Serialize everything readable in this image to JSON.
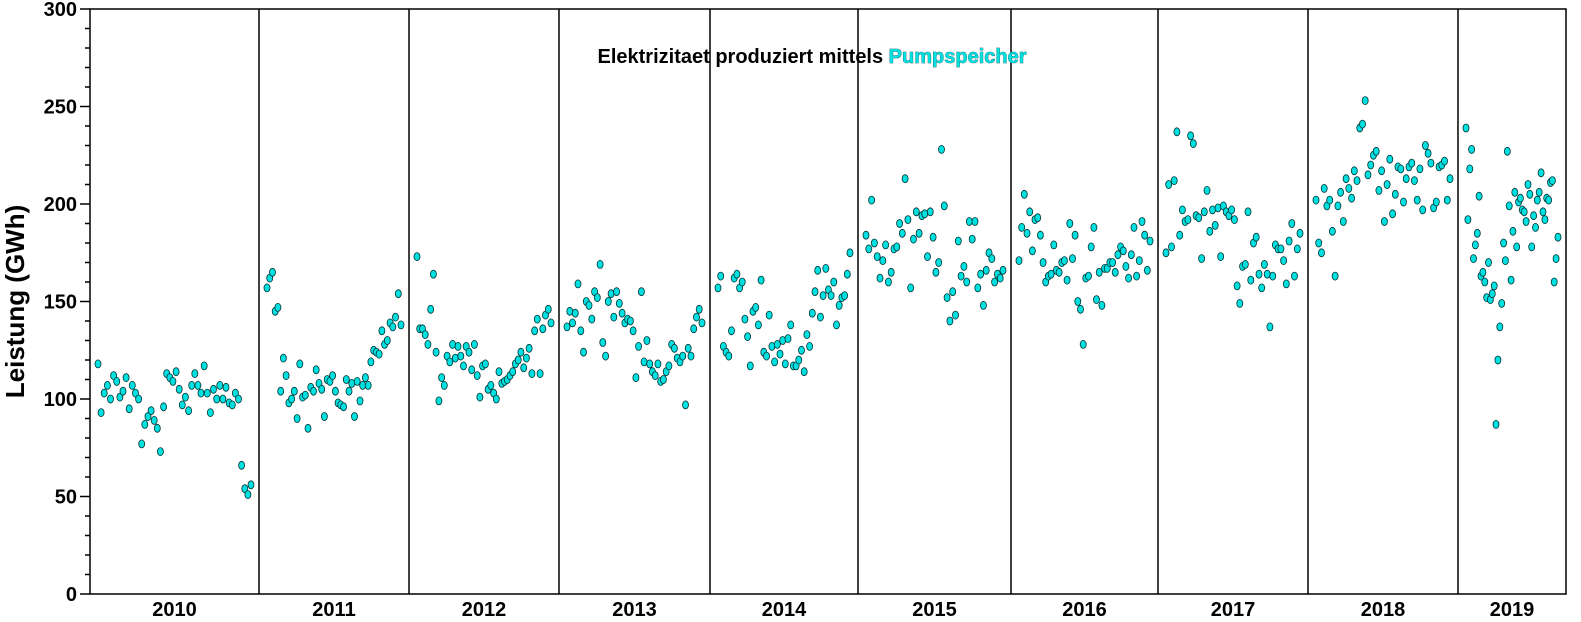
{
  "chart_data": {
    "type": "scatter",
    "title_prefix": "Elektrizitaet produziert mittels ",
    "title_highlight": "Pumpspeicher",
    "ylabel": "Leistung (GWh)",
    "xlabel": "",
    "ylim": [
      0,
      300
    ],
    "yticks": [
      0,
      50,
      100,
      150,
      200,
      250,
      300
    ],
    "categories": [
      "2010",
      "2011",
      "2012",
      "2013",
      "2014",
      "2015",
      "2016",
      "2017",
      "2018",
      "2019"
    ],
    "year_separators": true,
    "grid": false,
    "point_color": "#00e0e0",
    "series": [
      {
        "values": [
          [
            118,
            93,
            103,
            107,
            100,
            112,
            109,
            101,
            104,
            111,
            95,
            107,
            103,
            100,
            77,
            87,
            91,
            94,
            89,
            85,
            73,
            96,
            113,
            111,
            109,
            114,
            105,
            97,
            101,
            94,
            107,
            113,
            107,
            103,
            117,
            103,
            93,
            105,
            100,
            107,
            100,
            106,
            98,
            97,
            103,
            100,
            66,
            54,
            51,
            56
          ],
          [
            157,
            162,
            165,
            145,
            147,
            104,
            121,
            112,
            98,
            100,
            104,
            90,
            118,
            101,
            102,
            85,
            106,
            104,
            115,
            108,
            105,
            91,
            110,
            109,
            112,
            104,
            98,
            97,
            96,
            110,
            104,
            108,
            91,
            109,
            99,
            107,
            111,
            107,
            119,
            125,
            124,
            123,
            135,
            128,
            130,
            139,
            137,
            142,
            154,
            138
          ],
          [
            173,
            136,
            136,
            133,
            128,
            146,
            164,
            124,
            99,
            111,
            107,
            122,
            119,
            128,
            121,
            127,
            122,
            117,
            127,
            124,
            115,
            128,
            112,
            101,
            117,
            118,
            105,
            107,
            103,
            100,
            114,
            108,
            109,
            110,
            112,
            114,
            118,
            120,
            124,
            116,
            121,
            126,
            113,
            135,
            141,
            113,
            136,
            143,
            146,
            139
          ],
          [
            137,
            145,
            139,
            144,
            159,
            135,
            124,
            150,
            148,
            141,
            155,
            152,
            169,
            129,
            122,
            150,
            154,
            142,
            155,
            149,
            144,
            139,
            141,
            140,
            135,
            111,
            127,
            155,
            119,
            130,
            118,
            114,
            112,
            118,
            109,
            110,
            114,
            117,
            128,
            126,
            121,
            119,
            122,
            97,
            126,
            122,
            136,
            142,
            146,
            139
          ],
          [
            157,
            163,
            127,
            124,
            122,
            135,
            162,
            164,
            157,
            160,
            141,
            132,
            117,
            145,
            147,
            138,
            161,
            124,
            122,
            143,
            127,
            119,
            128,
            123,
            130,
            118,
            131,
            138,
            117,
            117,
            120,
            125,
            114,
            133,
            127,
            144,
            155,
            166,
            142,
            153,
            167,
            156,
            153,
            160,
            138,
            148,
            152,
            153,
            164,
            175
          ],
          [
            184,
            177,
            202,
            180,
            173,
            162,
            171,
            179,
            160,
            165,
            177,
            178,
            190,
            185,
            213,
            192,
            157,
            182,
            196,
            185,
            194,
            195,
            173,
            196,
            183,
            165,
            170,
            228,
            199,
            152,
            140,
            155,
            143,
            181,
            163,
            168,
            160,
            191,
            182,
            191,
            157,
            164,
            148,
            166,
            175,
            172,
            160,
            164,
            162,
            166
          ],
          [
            171,
            188,
            205,
            185,
            196,
            176,
            192,
            193,
            184,
            170,
            160,
            163,
            164,
            179,
            166,
            165,
            170,
            171,
            161,
            190,
            172,
            184,
            150,
            146,
            128,
            162,
            163,
            178,
            188,
            151,
            165,
            148,
            167,
            167,
            170,
            170,
            165,
            174,
            178,
            176,
            168,
            162,
            174,
            188,
            163,
            171,
            191,
            184,
            166,
            181
          ],
          [
            175,
            210,
            178,
            212,
            237,
            184,
            197,
            191,
            192,
            235,
            231,
            194,
            193,
            172,
            196,
            207,
            186,
            197,
            189,
            198,
            173,
            199,
            196,
            194,
            197,
            192,
            158,
            149,
            168,
            169,
            196,
            161,
            180,
            183,
            164,
            157,
            169,
            164,
            137,
            163,
            179,
            177,
            177,
            171,
            159,
            181,
            190,
            163,
            177,
            185
          ],
          [
            202,
            180,
            175,
            208,
            199,
            202,
            186,
            163,
            199,
            206,
            191,
            213,
            208,
            203,
            217,
            212,
            239,
            241,
            253,
            215,
            220,
            225,
            227,
            207,
            217,
            191,
            210,
            223,
            195,
            205,
            219,
            218,
            201,
            213,
            219,
            221,
            212,
            202,
            218,
            197,
            230,
            226,
            221,
            198,
            201,
            219,
            220,
            222,
            202,
            213
          ],
          [
            239,
            192,
            218,
            228,
            172,
            179,
            185,
            204,
            163,
            165,
            160,
            152,
            170,
            151,
            154,
            158,
            87,
            120,
            137,
            149,
            180,
            171,
            227,
            199,
            161,
            186,
            206,
            178,
            201,
            203,
            197,
            196,
            191,
            210,
            205,
            178,
            194,
            188,
            202,
            206,
            216,
            196,
            192,
            203,
            202,
            211,
            212,
            160,
            172,
            183
          ]
        ]
      }
    ]
  }
}
